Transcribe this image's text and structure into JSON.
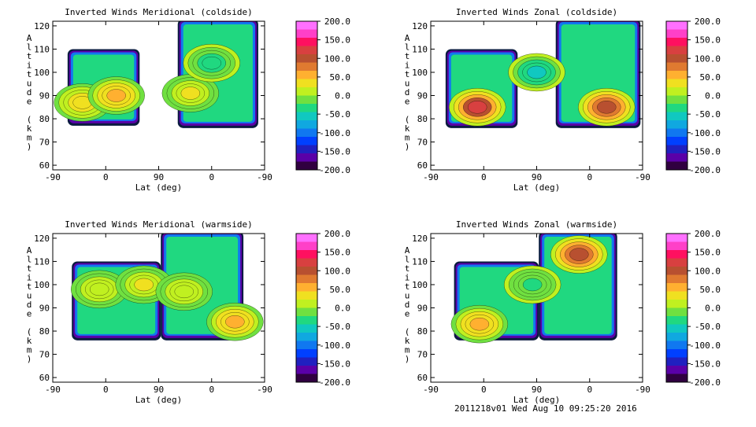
{
  "footer": "2011218v01 Wed Aug 10 09:25:20 2016",
  "colorbar": {
    "labels": [
      "200.0",
      "150.0",
      "100.0",
      "50.0",
      "0.0",
      "-50.0",
      "-100.0",
      "-150.0",
      "-200.0"
    ],
    "colors": [
      "#ff70ff",
      "#ff40c8",
      "#ff1060",
      "#d84040",
      "#b85030",
      "#e07a30",
      "#ffb030",
      "#f0e020",
      "#c0f020",
      "#70e040",
      "#20d880",
      "#10c8c0",
      "#10a8e0",
      "#1078f0",
      "#0040ff",
      "#2020c0",
      "#5a00a8",
      "#300040"
    ]
  },
  "chart_data": [
    {
      "type": "heatmap",
      "title": "Inverted Winds Meridional (coldside)",
      "xlabel": "Lat (deg)",
      "ylabel": "Altitude (km)",
      "xticks": [
        "-90",
        "0",
        "90",
        "0",
        "-90"
      ],
      "yticks": [
        "60",
        "70",
        "80",
        "90",
        "100",
        "110",
        "120"
      ],
      "ylim": [
        58,
        122
      ],
      "value_range": [
        -200,
        200
      ],
      "blobs": [
        {
          "x": 0.14,
          "alt": 87,
          "value": 40
        },
        {
          "x": 0.3,
          "alt": 90,
          "value": 60
        },
        {
          "x": 0.65,
          "alt": 91,
          "value": 25
        },
        {
          "x": 0.75,
          "alt": 104,
          "value": -40
        }
      ]
    },
    {
      "type": "heatmap",
      "title": "Inverted Winds Zonal (coldside)",
      "xlabel": "Lat (deg)",
      "ylabel": "Altitude (km)",
      "xticks": [
        "-90",
        "0",
        "90",
        "0",
        "-90"
      ],
      "yticks": [
        "60",
        "70",
        "80",
        "90",
        "100",
        "110",
        "120"
      ],
      "ylim": [
        58,
        122
      ],
      "value_range": [
        -200,
        200
      ],
      "blobs": [
        {
          "x": 0.22,
          "alt": 85,
          "value": 120
        },
        {
          "x": 0.5,
          "alt": 100,
          "value": -60
        },
        {
          "x": 0.83,
          "alt": 85,
          "value": 110
        }
      ]
    },
    {
      "type": "heatmap",
      "title": "Inverted Winds Meridional (warmside)",
      "xlabel": "Lat (deg)",
      "ylabel": "Altitude (km)",
      "xticks": [
        "-90",
        "0",
        "90",
        "0",
        "-90"
      ],
      "yticks": [
        "60",
        "70",
        "80",
        "90",
        "100",
        "110",
        "120"
      ],
      "ylim": [
        58,
        122
      ],
      "value_range": [
        -200,
        200
      ],
      "blobs": [
        {
          "x": 0.22,
          "alt": 98,
          "value": 20
        },
        {
          "x": 0.43,
          "alt": 100,
          "value": 30
        },
        {
          "x": 0.62,
          "alt": 97,
          "value": 15
        },
        {
          "x": 0.86,
          "alt": 84,
          "value": 55
        }
      ]
    },
    {
      "type": "heatmap",
      "title": "Inverted Winds Zonal (warmside)",
      "xlabel": "Lat (deg)",
      "ylabel": "Altitude (km)",
      "xticks": [
        "-90",
        "0",
        "90",
        "0",
        "-90"
      ],
      "yticks": [
        "60",
        "70",
        "80",
        "90",
        "100",
        "110",
        "120"
      ],
      "ylim": [
        58,
        122
      ],
      "value_range": [
        -200,
        200
      ],
      "blobs": [
        {
          "x": 0.23,
          "alt": 83,
          "value": 60
        },
        {
          "x": 0.7,
          "alt": 113,
          "value": 90
        },
        {
          "x": 0.48,
          "alt": 100,
          "value": -30
        }
      ]
    }
  ]
}
